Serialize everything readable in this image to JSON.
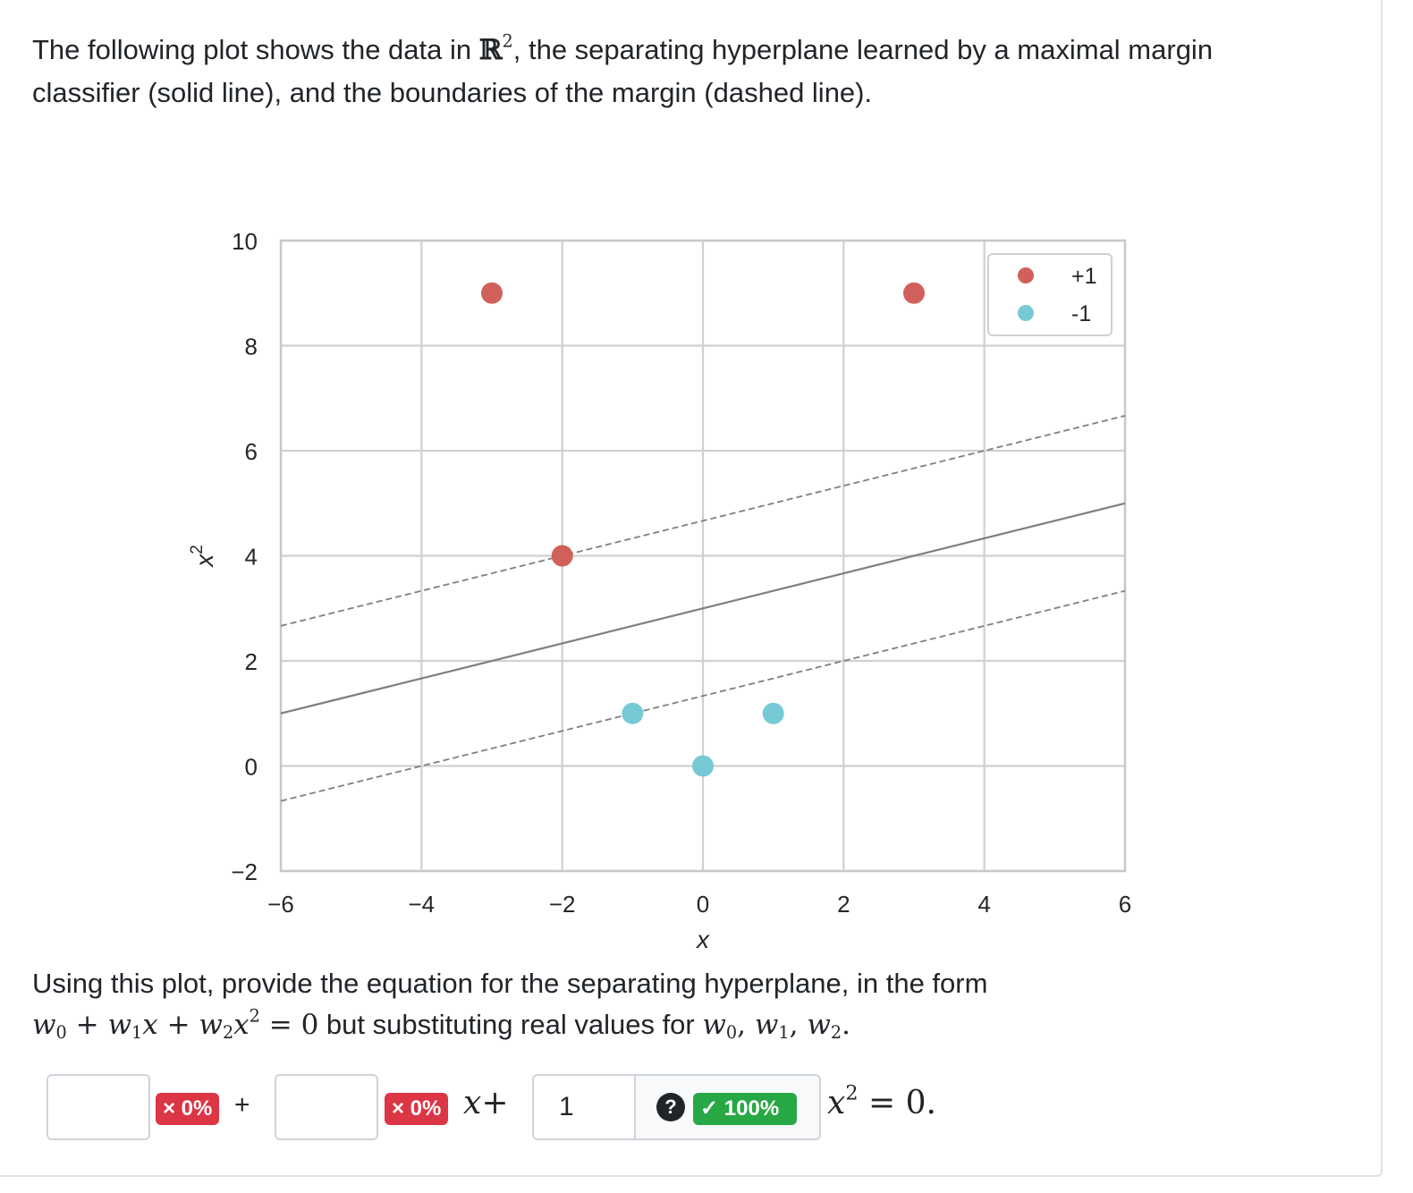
{
  "intro": {
    "before": "The following plot shows the data in ",
    "set_symbol": "ℝ",
    "set_exp": "2",
    "after_line1": ", the separating hyperplane learned by a maximal margin",
    "line2": "classifier (solid line), and the boundaries of the margin (dashed line)."
  },
  "question": {
    "line1": "Using this plot, provide the equation for the separating hyperplane, in the form",
    "eq_w0": "w",
    "eq_rest_text": " but substituting real values for ",
    "eq_end": "."
  },
  "chart_data": {
    "type": "scatter",
    "xlabel": "x",
    "ylabel": "x",
    "ylabel_exp": "2",
    "xlim": [
      -6,
      6
    ],
    "ylim": [
      -2,
      10
    ],
    "xticks": [
      -6,
      -4,
      -2,
      0,
      2,
      4,
      6
    ],
    "yticks": [
      -2,
      0,
      2,
      4,
      6,
      8,
      10
    ],
    "xtick_labels": [
      "−6",
      "−4",
      "−2",
      "0",
      "2",
      "4",
      "6"
    ],
    "ytick_labels": [
      "−2",
      "0",
      "2",
      "4",
      "6",
      "8",
      "10"
    ],
    "grid": true,
    "legend_position": "top-right",
    "series": [
      {
        "name": "+1",
        "color": "#d1605a",
        "points": [
          [
            -3,
            9
          ],
          [
            3,
            9
          ],
          [
            -2,
            4
          ]
        ]
      },
      {
        "name": "-1",
        "color": "#76cad6",
        "points": [
          [
            -1,
            1
          ],
          [
            0,
            0
          ],
          [
            1,
            1
          ]
        ]
      }
    ],
    "lines": [
      {
        "style": "solid",
        "color": "#7f7f7f",
        "intercept": 3,
        "slope": 0.3333
      },
      {
        "style": "dashed",
        "color": "#7f7f7f",
        "intercept": 4.6667,
        "slope": 0.3333
      },
      {
        "style": "dashed",
        "color": "#7f7f7f",
        "intercept": 1.3333,
        "slope": 0.3333
      }
    ]
  },
  "answer": {
    "w0_value": "",
    "w0_score": "× 0%",
    "plus": "+",
    "w1_value": "",
    "w1_score": "× 0%",
    "w2_value": "1",
    "help": "?",
    "w2_score": "✓ 100%",
    "colors": {
      "incorrect": "#dc3545",
      "correct": "#28a745"
    }
  }
}
